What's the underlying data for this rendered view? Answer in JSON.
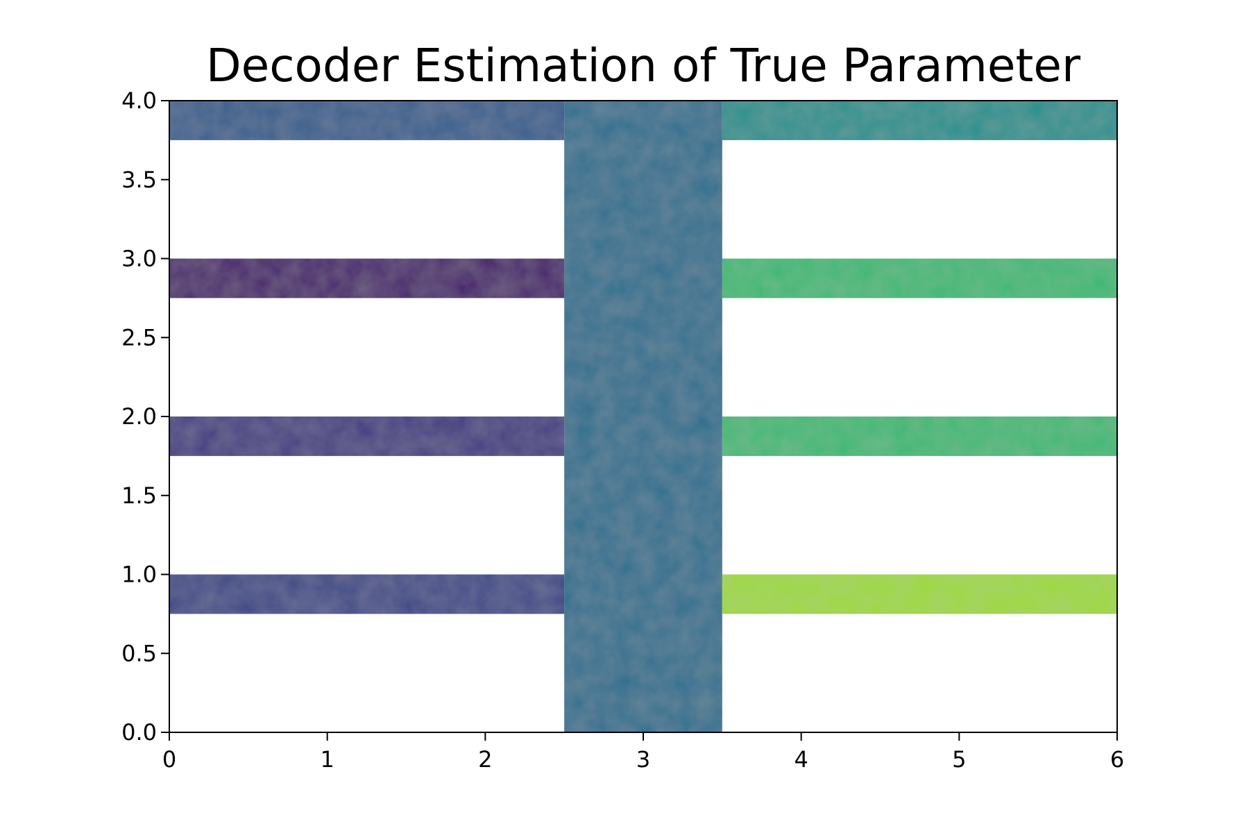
{
  "chart_data": {
    "type": "heatmap",
    "title": "Decoder Estimation of True Parameter",
    "xlabel": "",
    "ylabel": "",
    "xlim": [
      0,
      6
    ],
    "ylim": [
      0,
      4
    ],
    "x_ticks": [
      "0",
      "1",
      "2",
      "3",
      "4",
      "5",
      "6"
    ],
    "y_ticks": [
      "0.0",
      "0.5",
      "1.0",
      "1.5",
      "2.0",
      "2.5",
      "3.0",
      "3.5",
      "4.0"
    ],
    "grid": false,
    "legend": "none",
    "colormap": "viridis",
    "value_range": [
      0,
      1
    ],
    "regions": [
      {
        "x": [
          2.5,
          3.5
        ],
        "y": [
          0.0,
          4.0
        ],
        "value": 0.37
      },
      {
        "x": [
          0.0,
          2.5
        ],
        "y": [
          3.75,
          4.0
        ],
        "value": 0.3
      },
      {
        "x": [
          3.5,
          6.0
        ],
        "y": [
          3.75,
          4.0
        ],
        "value": 0.5
      },
      {
        "x": [
          0.0,
          2.5
        ],
        "y": [
          2.75,
          3.0
        ],
        "value": 0.08
      },
      {
        "x": [
          3.5,
          6.0
        ],
        "y": [
          2.75,
          3.0
        ],
        "value": 0.68
      },
      {
        "x": [
          0.0,
          2.5
        ],
        "y": [
          1.75,
          2.0
        ],
        "value": 0.18
      },
      {
        "x": [
          3.5,
          6.0
        ],
        "y": [
          1.75,
          2.0
        ],
        "value": 0.68
      },
      {
        "x": [
          0.0,
          2.5
        ],
        "y": [
          0.75,
          1.0
        ],
        "value": 0.22
      },
      {
        "x": [
          3.5,
          6.0
        ],
        "y": [
          0.75,
          1.0
        ],
        "value": 0.86
      }
    ],
    "colors": {
      "axis": "#000000",
      "background": "#ffffff"
    }
  }
}
